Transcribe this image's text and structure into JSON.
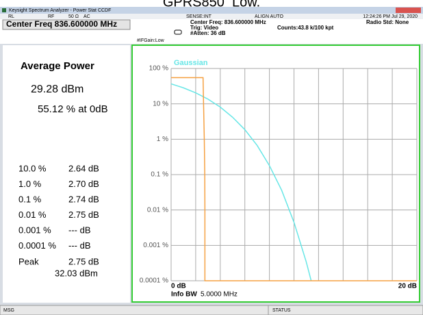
{
  "caption": "GPRS850_Low.",
  "window_title": "Keysight Spectrum Analyzer - Power Stat CCDF",
  "status_bar": {
    "ref_level": "RL",
    "rf": "RF",
    "impedance": "50 Ω",
    "coupling": "AC",
    "sense": "SENSE:INT",
    "align": "ALIGN AUTO",
    "timestamp": "12:24:26 PM Jul 29, 2020"
  },
  "header": {
    "center_freq": "Center Freq 836.600000 MHz",
    "if_gain": "#IFGain:Low",
    "center_freq_info": "Center Freq: 836.600000 MHz",
    "trig": "Trig: Video",
    "atten": "#Atten: 36 dB",
    "counts": "Counts:43.8 k/100 kpt",
    "radio_std": "Radio Std: None"
  },
  "results": {
    "title": "Average Power",
    "avg_power": "29.28 dBm",
    "pct_at_0db": "55.12 % at 0dB",
    "rows": [
      [
        "10.0 %",
        "2.64 dB"
      ],
      [
        "1.0 %",
        "2.70 dB"
      ],
      [
        "0.1 %",
        "2.74 dB"
      ],
      [
        "0.01 %",
        "2.75 dB"
      ],
      [
        "0.001 %",
        "--- dB"
      ],
      [
        "0.0001 %",
        "--- dB"
      ]
    ],
    "peak_label": "Peak",
    "peak_db": "2.75 dB",
    "peak_dbm": "32.03 dBm"
  },
  "chart_data": {
    "type": "line",
    "log_y": true,
    "grid": true,
    "frame_color": "#33cc33",
    "x_label": "Info BW",
    "x_label_value": "5.0000 MHz",
    "xlim": [
      0,
      20
    ],
    "ylim": [
      0.0001,
      100
    ],
    "xticks": [
      {
        "value": 0,
        "label": "0 dB"
      },
      {
        "value": 20,
        "label": "20 dB"
      }
    ],
    "xgrid": [
      0,
      2,
      4,
      6,
      8,
      10,
      12,
      14,
      16,
      18,
      20
    ],
    "yticks": [
      {
        "value": 100,
        "label": "100 %"
      },
      {
        "value": 10,
        "label": "10 %"
      },
      {
        "value": 1,
        "label": "1 %"
      },
      {
        "value": 0.1,
        "label": "0.1 %"
      },
      {
        "value": 0.01,
        "label": "0.01 %"
      },
      {
        "value": 0.001,
        "label": "0.001 %"
      },
      {
        "value": 0.0001,
        "label": "0.0001 %"
      }
    ],
    "series": [
      {
        "name": "Gaussian",
        "color": "#66e6e6",
        "x": [
          0,
          1,
          2,
          3,
          4,
          5,
          6,
          7,
          8,
          9,
          10,
          11,
          11.4
        ],
        "values": [
          36.8,
          28.4,
          20.5,
          13.6,
          8.1,
          4.2,
          1.87,
          0.67,
          0.18,
          0.036,
          0.0045,
          0.00034,
          0.0001
        ]
      },
      {
        "color": "#f5a040",
        "x": [
          0,
          2.6,
          2.64,
          2.7,
          2.74,
          2.75,
          2.75,
          20
        ],
        "values": [
          55.12,
          55.12,
          10,
          1,
          0.1,
          0.01,
          0.0001,
          0.0001
        ]
      }
    ]
  },
  "footer": {
    "msg": "MSG",
    "status": "STATUS"
  }
}
